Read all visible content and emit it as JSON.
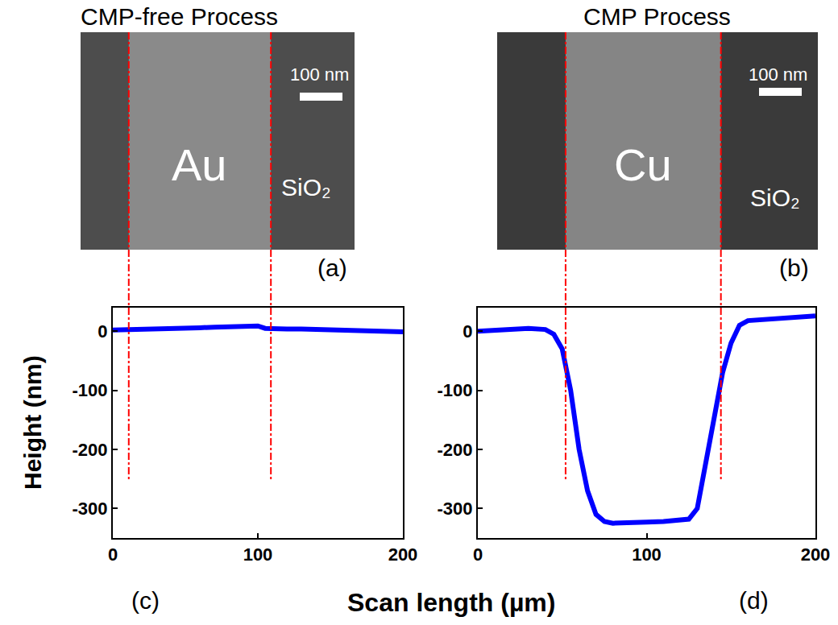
{
  "figure": {
    "panels": [
      {
        "title": "CMP-free Process",
        "letter": "(a)",
        "material": "Au",
        "dielectric": "SiO₂",
        "scale_bar": "100 nm"
      },
      {
        "title": "CMP Process",
        "letter": "(b)",
        "material": "Cu",
        "dielectric": "SiO₂",
        "scale_bar": "100 nm"
      }
    ],
    "xlabel": "Scan length (µm)",
    "ylabel": "Height (nm)"
  },
  "chart_data": [
    {
      "type": "line",
      "letter": "(c)",
      "x": [
        0,
        10,
        20,
        30,
        40,
        50,
        60,
        70,
        80,
        90,
        100,
        105,
        110,
        120,
        130,
        140,
        150,
        160,
        170,
        180,
        190,
        200
      ],
      "values": [
        2,
        3,
        4,
        5,
        6,
        6,
        6,
        7,
        8,
        9,
        9,
        5,
        4,
        4,
        4,
        3,
        3,
        2,
        1,
        1,
        0,
        -1
      ],
      "color": "#0000ff",
      "line_style": "solid",
      "xlim": [
        0,
        200
      ],
      "xticks": [
        0,
        100,
        200
      ],
      "ylim": [
        -350,
        40
      ],
      "yticks": [
        -300,
        -200,
        -100,
        0
      ],
      "boundaries": [
        11,
        109
      ]
    },
    {
      "type": "line",
      "letter": "(d)",
      "x": [
        0,
        10,
        20,
        30,
        40,
        45,
        50,
        55,
        60,
        65,
        70,
        75,
        80,
        90,
        100,
        110,
        120,
        125,
        130,
        135,
        140,
        145,
        150,
        155,
        160,
        170,
        180,
        190,
        200
      ],
      "values": [
        0,
        2,
        3,
        5,
        3,
        -5,
        -30,
        -100,
        -200,
        -270,
        -310,
        -322,
        -325,
        -325,
        -323,
        -322,
        -320,
        -318,
        -300,
        -220,
        -140,
        -70,
        -20,
        10,
        18,
        20,
        22,
        24,
        26
      ],
      "color": "#0000ff",
      "line_style": "solid",
      "xlim": [
        0,
        200
      ],
      "xticks": [
        0,
        100,
        200
      ],
      "ylim": [
        -350,
        40
      ],
      "yticks": [
        -300,
        -200,
        -100,
        0
      ],
      "boundaries": [
        52,
        144
      ]
    }
  ]
}
